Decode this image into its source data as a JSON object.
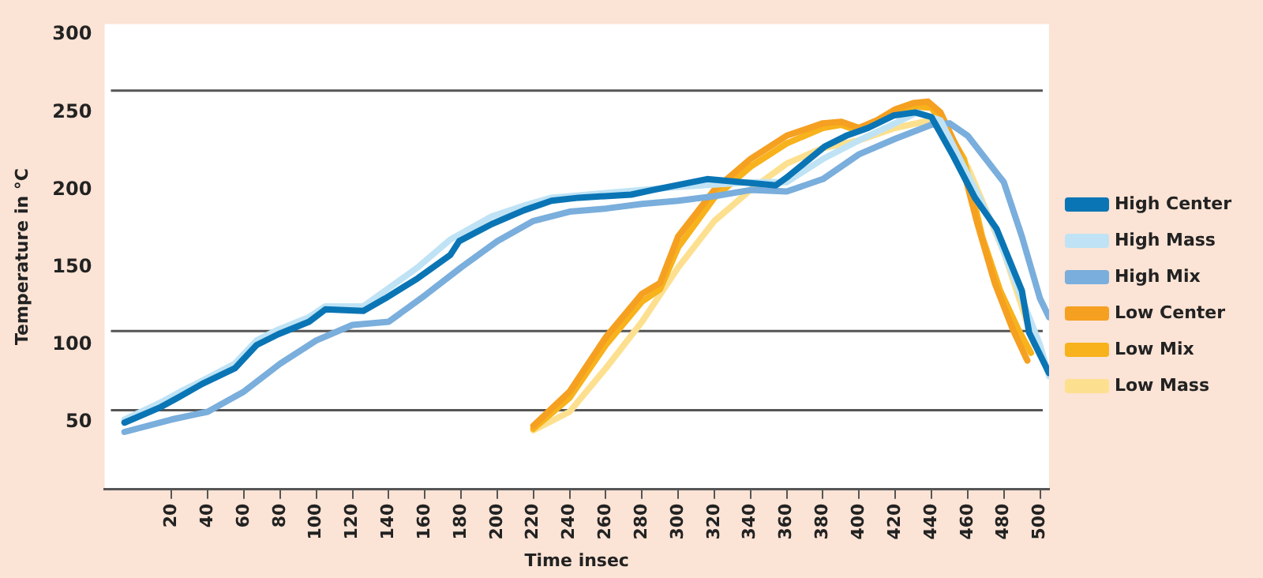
{
  "chart_data": {
    "type": "line",
    "xlabel": "Time insec",
    "ylabel": "Temperature in °C",
    "xlim": [
      -17,
      505
    ],
    "xticks": [
      20,
      40,
      60,
      80,
      100,
      120,
      140,
      160,
      180,
      200,
      220,
      240,
      260,
      280,
      300,
      320,
      340,
      360,
      380,
      400,
      420,
      440,
      460,
      480,
      500
    ],
    "ylim": [
      7,
      307
    ],
    "yticks": [
      50,
      100,
      150,
      200,
      250,
      300
    ],
    "grid": false,
    "legend": "right",
    "marker": "none",
    "line_style": "solid",
    "ref_lines": [
      {
        "axis": "y",
        "value": 264,
        "color": "#555555"
      },
      {
        "axis": "y",
        "value": 109,
        "color": "#555555"
      },
      {
        "axis": "y",
        "value": 58,
        "color": "#555555"
      }
    ],
    "series": [
      {
        "name": "High Center",
        "color": "#0a75b5",
        "x": [
          -6,
          14,
          25,
          37,
          55,
          67,
          79,
          96,
          105,
          126,
          138,
          156,
          174,
          179,
          197,
          215,
          230,
          245,
          274,
          286,
          316,
          354,
          360,
          381,
          393,
          405,
          419,
          431,
          440,
          452,
          464,
          476,
          490,
          494,
          505
        ],
        "values": [
          50,
          60,
          67,
          75,
          85,
          100,
          107,
          115,
          123,
          122,
          130,
          143,
          158,
          167,
          178,
          187,
          193,
          195,
          197,
          200,
          207,
          203,
          208,
          228,
          235,
          240,
          248,
          250,
          247,
          222,
          195,
          175,
          135,
          108,
          82
        ]
      },
      {
        "name": "High Mass",
        "color": "#bfe3f5",
        "x": [
          -6,
          14,
          25,
          37,
          55,
          67,
          79,
          96,
          105,
          126,
          138,
          156,
          174,
          197,
          215,
          230,
          260,
          300,
          340,
          360,
          380,
          400,
          420,
          432,
          445,
          460,
          475,
          490,
          500,
          505
        ],
        "values": [
          52,
          63,
          70,
          77,
          88,
          103,
          110,
          118,
          125,
          125,
          135,
          150,
          168,
          183,
          190,
          195,
          198,
          202,
          205,
          205,
          220,
          232,
          243,
          250,
          245,
          210,
          175,
          130,
          100,
          80
        ]
      },
      {
        "name": "High Mix",
        "color": "#7aaedc",
        "x": [
          -6,
          20,
          40,
          60,
          80,
          100,
          120,
          140,
          160,
          180,
          200,
          220,
          240,
          260,
          280,
          300,
          320,
          340,
          360,
          380,
          400,
          420,
          440,
          450,
          460,
          470,
          480,
          490,
          500,
          505
        ],
        "values": [
          44,
          52,
          57,
          70,
          88,
          103,
          113,
          115,
          132,
          150,
          167,
          180,
          186,
          188,
          191,
          193,
          196,
          200,
          199,
          207,
          223,
          233,
          242,
          243,
          235,
          220,
          205,
          170,
          130,
          118
        ]
      },
      {
        "name": "Low Center",
        "color": "#f5a021",
        "x": [
          220,
          240,
          260,
          280,
          290,
          300,
          320,
          340,
          360,
          380,
          390,
          400,
          410,
          420,
          430,
          438,
          445,
          455,
          465,
          475,
          485,
          493
        ],
        "values": [
          48,
          70,
          105,
          133,
          140,
          170,
          200,
          220,
          235,
          243,
          244,
          240,
          245,
          252,
          256,
          257,
          250,
          225,
          180,
          140,
          110,
          90
        ]
      },
      {
        "name": "Low Mix",
        "color": "#f7b21c",
        "x": [
          220,
          240,
          260,
          280,
          290,
          300,
          320,
          340,
          360,
          380,
          390,
          400,
          410,
          420,
          430,
          440,
          448,
          458,
          468,
          478,
          488,
          495
        ],
        "values": [
          46,
          66,
          100,
          128,
          136,
          163,
          195,
          215,
          230,
          240,
          242,
          238,
          243,
          250,
          254,
          253,
          240,
          220,
          170,
          135,
          110,
          95
        ]
      },
      {
        "name": "Low Mass",
        "color": "#fde08f",
        "x": [
          220,
          240,
          260,
          280,
          300,
          320,
          340,
          360,
          380,
          400,
          420,
          440,
          460,
          480,
          497
        ],
        "values": [
          45,
          57,
          85,
          115,
          150,
          180,
          200,
          217,
          227,
          232,
          240,
          245,
          215,
          160,
          100
        ]
      }
    ]
  }
}
